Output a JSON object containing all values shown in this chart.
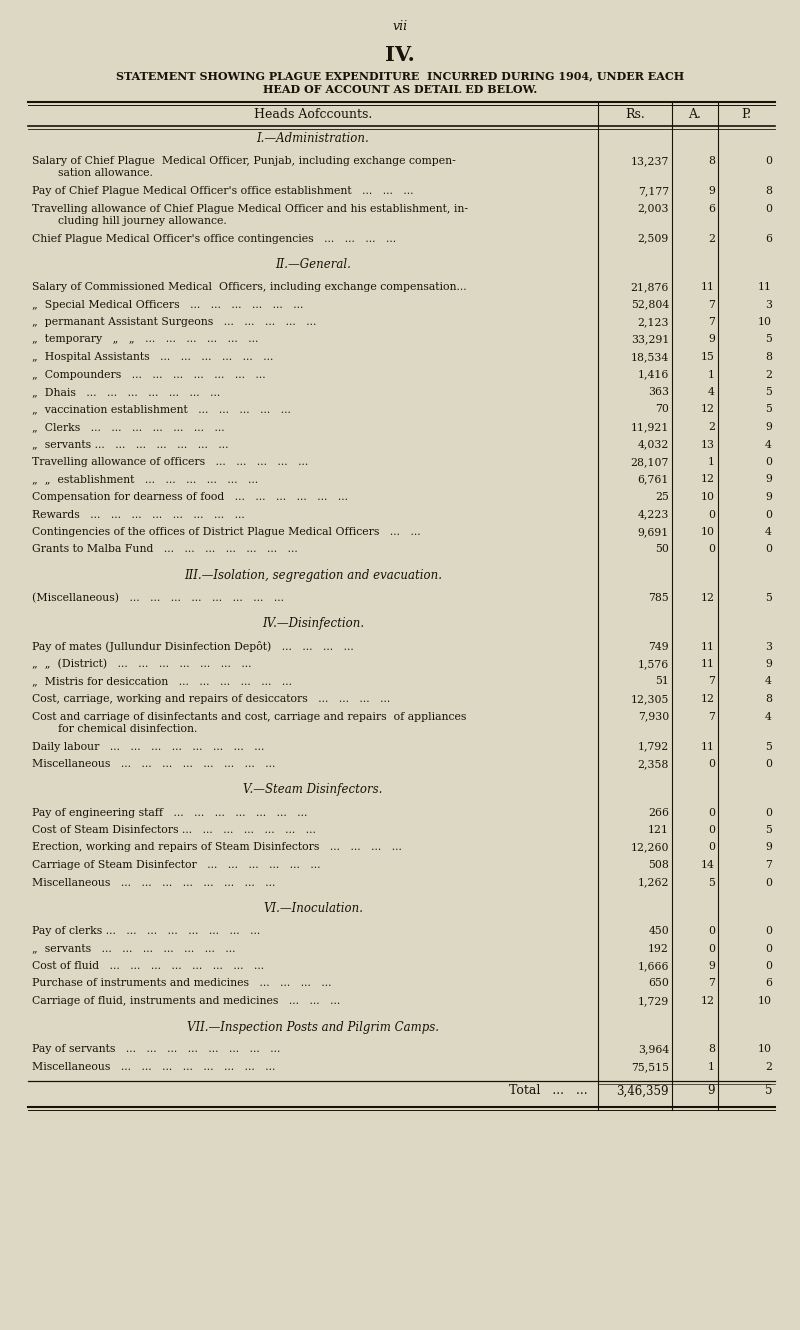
{
  "page_num": "vii",
  "roman_num": "IV.",
  "title_line1": "STATEMENT SHOWING PLAGUE EXPENDITURE  INCURRED DURING 1904, UNDER EACH",
  "title_line2": "HEAD OF ACCOUNT AS DETAIL ED BELOW.",
  "col_head1": "Heads Aofccounts.",
  "col_head2": "Rs.",
  "col_head3": "A.",
  "col_head4": "P.",
  "bg_color": "#ddd8c4",
  "text_color": "#1a1208",
  "rows": [
    {
      "type": "section",
      "text": "I.—Administration."
    },
    {
      "type": "spacer"
    },
    {
      "type": "data2",
      "text1": "Salary of Chief Plague  Medical Officer, Punjab, including exchange compen-",
      "text2": "sation allowance.",
      "rs": "13,237",
      "a": "8",
      "p": "0"
    },
    {
      "type": "data1",
      "text": "Pay of Chief Plague Medical Officer's office establishment   ...   ...   ...",
      "rs": "7,177",
      "a": "9",
      "p": "8"
    },
    {
      "type": "data2",
      "text1": "Travelling allowance of Chief Plague Medical Officer and his establishment, in-",
      "text2": "cluding hill journey allowance.",
      "rs": "2,003",
      "a": "6",
      "p": "0"
    },
    {
      "type": "data1",
      "text": "Chief Plague Medical Officer's office contingencies   ...   ...   ...   ...",
      "rs": "2,509",
      "a": "2",
      "p": "6"
    },
    {
      "type": "spacer"
    },
    {
      "type": "section",
      "text": "II.—General."
    },
    {
      "type": "spacer"
    },
    {
      "type": "data1",
      "text": "Salary of Commissioned Medical  Officers, including exchange compensation...",
      "rs": "21,876",
      "a": "11",
      "p": "11"
    },
    {
      "type": "data1",
      "text": "„  Special Medical Officers   ...   ...   ...   ...   ...   ...",
      "rs": "52,804",
      "a": "7",
      "p": "3"
    },
    {
      "type": "data1",
      "text": "„  permanant Assistant Surgeons   ...   ...   ...   ...   ...",
      "rs": "2,123",
      "a": "7",
      "p": "10"
    },
    {
      "type": "data1",
      "text": "„  temporary   „   „   ...   ...   ...   ...   ...   ...",
      "rs": "33,291",
      "a": "9",
      "p": "5"
    },
    {
      "type": "data1",
      "text": "„  Hospital Assistants   ...   ...   ...   ...   ...   ...",
      "rs": "18,534",
      "a": "15",
      "p": "8"
    },
    {
      "type": "data1",
      "text": "„  Compounders   ...   ...   ...   ...   ...   ...   ...",
      "rs": "1,416",
      "a": "1",
      "p": "2"
    },
    {
      "type": "data1",
      "text": "„  Dhais   ...   ...   ...   ...   ...   ...   ...",
      "rs": "363",
      "a": "4",
      "p": "5"
    },
    {
      "type": "data1",
      "text": "„  vaccination establishment   ...   ...   ...   ...   ...",
      "rs": "70",
      "a": "12",
      "p": "5"
    },
    {
      "type": "data1",
      "text": "„  Clerks   ...   ...   ...   ...   ...   ...   ...",
      "rs": "11,921",
      "a": "2",
      "p": "9"
    },
    {
      "type": "data1",
      "text": "„  servants ...   ...   ...   ...   ...   ...   ...",
      "rs": "4,032",
      "a": "13",
      "p": "4"
    },
    {
      "type": "data1",
      "text": "Travelling allowance of officers   ...   ...   ...   ...   ...",
      "rs": "28,107",
      "a": "1",
      "p": "0"
    },
    {
      "type": "data1",
      "text": "„  „  establishment   ...   ...   ...   ...   ...   ...",
      "rs": "6,761",
      "a": "12",
      "p": "9"
    },
    {
      "type": "data1",
      "text": "Compensation for dearness of food   ...   ...   ...   ...   ...   ...",
      "rs": "25",
      "a": "10",
      "p": "9"
    },
    {
      "type": "data1",
      "text": "Rewards   ...   ...   ...   ...   ...   ...   ...   ...",
      "rs": "4,223",
      "a": "0",
      "p": "0"
    },
    {
      "type": "data1",
      "text": "Contingencies of the offices of District Plague Medical Officers   ...   ...",
      "rs": "9,691",
      "a": "10",
      "p": "4"
    },
    {
      "type": "data1",
      "text": "Grants to Malba Fund   ...   ...   ...   ...   ...   ...   ...",
      "rs": "50",
      "a": "0",
      "p": "0"
    },
    {
      "type": "spacer"
    },
    {
      "type": "section",
      "text": "III.—Isolation, segregation and evacuation."
    },
    {
      "type": "spacer"
    },
    {
      "type": "data1",
      "text": "(Miscellaneous)   ...   ...   ...   ...   ...   ...   ...   ...",
      "rs": "785",
      "a": "12",
      "p": "5"
    },
    {
      "type": "spacer"
    },
    {
      "type": "section",
      "text": "IV.—Disinfection."
    },
    {
      "type": "spacer"
    },
    {
      "type": "data1",
      "text": "Pay of mates (Jullundur Disinfection Depôt)   ...   ...   ...   ...",
      "rs": "749",
      "a": "11",
      "p": "3"
    },
    {
      "type": "data1",
      "text": "„  „  (District)   ...   ...   ...   ...   ...   ...   ...",
      "rs": "1,576",
      "a": "11",
      "p": "9"
    },
    {
      "type": "data1",
      "text": "„  Mistris for desiccation   ...   ...   ...   ...   ...   ...",
      "rs": "51",
      "a": "7",
      "p": "4"
    },
    {
      "type": "data1",
      "text": "Cost, carriage, working and repairs of desiccators   ...   ...   ...   ...",
      "rs": "12,305",
      "a": "12",
      "p": "8"
    },
    {
      "type": "data2",
      "text1": "Cost and carriage of disinfectants and cost, carriage and repairs  of appliances",
      "text2": "for chemical disinfection.",
      "rs": "7,930",
      "a": "7",
      "p": "4"
    },
    {
      "type": "data1",
      "text": "Daily labour   ...   ...   ...   ...   ...   ...   ...   ...",
      "rs": "1,792",
      "a": "11",
      "p": "5"
    },
    {
      "type": "data1",
      "text": "Miscellaneous   ...   ...   ...   ...   ...   ...   ...   ...",
      "rs": "2,358",
      "a": "0",
      "p": "0"
    },
    {
      "type": "spacer"
    },
    {
      "type": "section",
      "text": "V.—Steam Disinfectors."
    },
    {
      "type": "spacer"
    },
    {
      "type": "data1",
      "text": "Pay of engineering staff   ...   ...   ...   ...   ...   ...   ...",
      "rs": "266",
      "a": "0",
      "p": "0"
    },
    {
      "type": "data1",
      "text": "Cost of Steam Disinfectors ...   ...   ...   ...   ...   ...   ...",
      "rs": "121",
      "a": "0",
      "p": "5"
    },
    {
      "type": "data1",
      "text": "Erection, working and repairs of Steam Disinfectors   ...   ...   ...   ...",
      "rs": "12,260",
      "a": "0",
      "p": "9"
    },
    {
      "type": "data1",
      "text": "Carriage of Steam Disinfector   ...   ...   ...   ...   ...   ...",
      "rs": "508",
      "a": "14",
      "p": "7"
    },
    {
      "type": "data1",
      "text": "Miscellaneous   ...   ...   ...   ...   ...   ...   ...   ...",
      "rs": "1,262",
      "a": "5",
      "p": "0"
    },
    {
      "type": "spacer"
    },
    {
      "type": "section",
      "text": "VI.—Inoculation."
    },
    {
      "type": "spacer"
    },
    {
      "type": "data1",
      "text": "Pay of clerks ...   ...   ...   ...   ...   ...   ...   ...",
      "rs": "450",
      "a": "0",
      "p": "0"
    },
    {
      "type": "data1",
      "text": "„  servants   ...   ...   ...   ...   ...   ...   ...",
      "rs": "192",
      "a": "0",
      "p": "0"
    },
    {
      "type": "data1",
      "text": "Cost of fluid   ...   ...   ...   ...   ...   ...   ...   ...",
      "rs": "1,666",
      "a": "9",
      "p": "0"
    },
    {
      "type": "data1",
      "text": "Purchase of instruments and medicines   ...   ...   ...   ...",
      "rs": "650",
      "a": "7",
      "p": "6"
    },
    {
      "type": "data1",
      "text": "Carriage of fluid, instruments and medicines   ...   ...   ...",
      "rs": "1,729",
      "a": "12",
      "p": "10"
    },
    {
      "type": "spacer"
    },
    {
      "type": "section",
      "text": "VII.—Inspection Posts and Pilgrim Camps."
    },
    {
      "type": "spacer"
    },
    {
      "type": "data1",
      "text": "Pay of servants   ...   ...   ...   ...   ...   ...   ...   ...",
      "rs": "3,964",
      "a": "8",
      "p": "10"
    },
    {
      "type": "data1",
      "text": "Miscellaneous   ...   ...   ...   ...   ...   ...   ...   ...",
      "rs": "75,515",
      "a": "1",
      "p": "2"
    },
    {
      "type": "total",
      "text": "Total   ...   ...",
      "rs": "3,46,359",
      "a": "9",
      "p": "5"
    }
  ]
}
